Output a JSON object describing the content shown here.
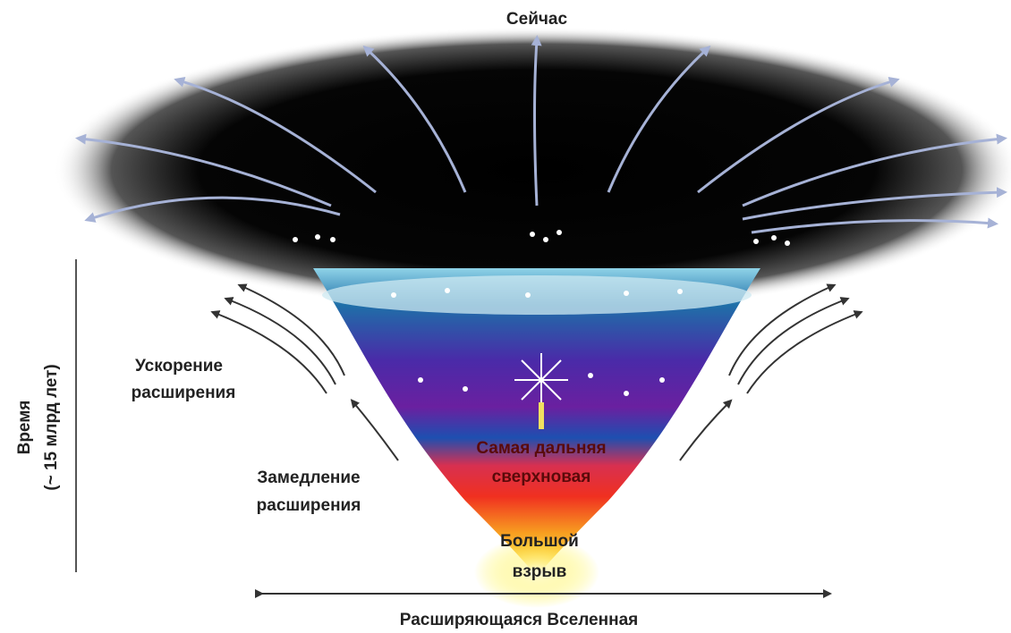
{
  "diagram": {
    "top_label": "Сейчас",
    "acceleration": [
      "Ускорение",
      "расширения"
    ],
    "deceleration": [
      "Замедление",
      "расширения"
    ],
    "supernova": [
      "Самая дальняя",
      "сверхновая"
    ],
    "big_bang": [
      "Большой",
      "взрыв"
    ],
    "bottom_label": "Расширяющаяся Вселенная",
    "time_axis": [
      "Время",
      "(~ 15 млрд лет)"
    ]
  }
}
